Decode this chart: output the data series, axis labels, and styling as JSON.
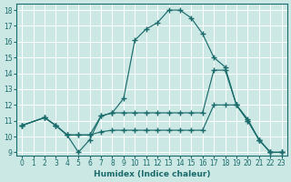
{
  "xlabel": "Humidex (Indice chaleur)",
  "bg_color": "#cce8e5",
  "grid_color": "#ffffff",
  "line_color": "#1a6b6b",
  "xlim": [
    -0.5,
    23.5
  ],
  "ylim": [
    8.8,
    18.4
  ],
  "xticks": [
    0,
    1,
    2,
    3,
    4,
    5,
    6,
    7,
    8,
    9,
    10,
    11,
    12,
    13,
    14,
    15,
    16,
    17,
    18,
    19,
    20,
    21,
    22,
    23
  ],
  "yticks": [
    9,
    10,
    11,
    12,
    13,
    14,
    15,
    16,
    17,
    18
  ],
  "line1_x": [
    0,
    2,
    3,
    4,
    5,
    6,
    7,
    8,
    9,
    10,
    11,
    12,
    13,
    14,
    15,
    16,
    17,
    18,
    19,
    20,
    21,
    22,
    23
  ],
  "line1_y": [
    10.7,
    11.2,
    10.7,
    10.1,
    9.0,
    9.8,
    11.3,
    11.5,
    12.4,
    16.1,
    16.8,
    17.2,
    18.0,
    18.0,
    17.5,
    16.5,
    15.0,
    14.4,
    12.0,
    11.1,
    9.8,
    9.0,
    9.0
  ],
  "line2_x": [
    0,
    2,
    3,
    4,
    5,
    6,
    7,
    8,
    9,
    10,
    11,
    12,
    13,
    14,
    15,
    16,
    17,
    18,
    19,
    20,
    21,
    22,
    23
  ],
  "line2_y": [
    10.7,
    11.2,
    10.7,
    10.1,
    10.1,
    10.1,
    11.3,
    11.5,
    11.5,
    11.5,
    11.5,
    11.5,
    11.5,
    11.5,
    11.5,
    11.5,
    14.2,
    14.2,
    12.0,
    11.0,
    9.8,
    9.0,
    9.0
  ],
  "line3_x": [
    0,
    2,
    3,
    4,
    5,
    6,
    7,
    8,
    9,
    10,
    11,
    12,
    13,
    14,
    15,
    16,
    17,
    18,
    19,
    20,
    21,
    22,
    23
  ],
  "line3_y": [
    10.7,
    11.2,
    10.7,
    10.1,
    10.1,
    10.1,
    10.3,
    10.4,
    10.4,
    10.4,
    10.4,
    10.4,
    10.4,
    10.4,
    10.4,
    10.4,
    12.0,
    12.0,
    12.0,
    11.0,
    9.8,
    9.0,
    9.0
  ]
}
